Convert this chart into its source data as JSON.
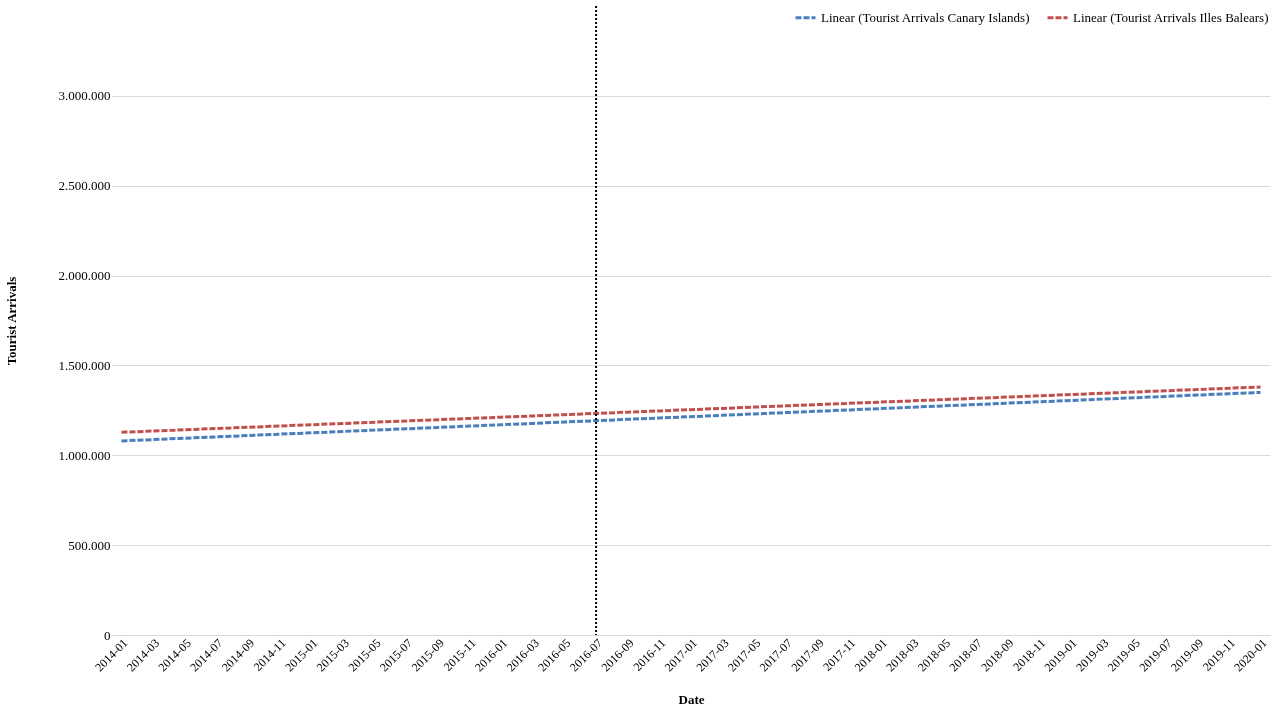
{
  "chart_data": {
    "type": "line",
    "xlabel": "Date",
    "ylabel": "Tourist Arrivals",
    "categories": [
      "2014-01",
      "2014-03",
      "2014-05",
      "2014-07",
      "2014-09",
      "2014-11",
      "2015-01",
      "2015-03",
      "2015-05",
      "2015-07",
      "2015-09",
      "2015-11",
      "2016-01",
      "2016-03",
      "2016-05",
      "2016-07",
      "2016-09",
      "2016-11",
      "2017-01",
      "2017-03",
      "2017-05",
      "2017-07",
      "2017-09",
      "2017-11",
      "2018-01",
      "2018-03",
      "2018-05",
      "2018-07",
      "2018-09",
      "2018-11",
      "2019-01",
      "2019-03",
      "2019-05",
      "2019-07",
      "2019-09",
      "2019-11",
      "2020-01"
    ],
    "series": [
      {
        "name": "Linear (Tourist Arrivals Canary Islands)",
        "color": "#4a7ebb",
        "values": [
          1080000,
          1087500,
          1095000,
          1102500,
          1110000,
          1117500,
          1125000,
          1132500,
          1140000,
          1147500,
          1155000,
          1162500,
          1170000,
          1177500,
          1185000,
          1192500,
          1200000,
          1207500,
          1215000,
          1222500,
          1230000,
          1237500,
          1245000,
          1252500,
          1260000,
          1267500,
          1275000,
          1282500,
          1290000,
          1297500,
          1305000,
          1312500,
          1320000,
          1327500,
          1335000,
          1342500,
          1350000
        ]
      },
      {
        "name": "Linear (Tourist Arrivals Illes Balears)",
        "color": "#c0504d",
        "values": [
          1128000,
          1135000,
          1142000,
          1149000,
          1156000,
          1163000,
          1170000,
          1177000,
          1184000,
          1191000,
          1198000,
          1205000,
          1212000,
          1219000,
          1226000,
          1233000,
          1240000,
          1247000,
          1254000,
          1261000,
          1268000,
          1275000,
          1282000,
          1289000,
          1296000,
          1303000,
          1310000,
          1317000,
          1324000,
          1331000,
          1338000,
          1345000,
          1352000,
          1359000,
          1366000,
          1373000,
          1380000
        ]
      }
    ],
    "ylim": [
      0,
      3500000
    ],
    "yticks": [
      0,
      {
        "value": 500000,
        "label": "500.000"
      },
      {
        "value": 1000000,
        "label": "1.000.000"
      },
      {
        "value": 1500000,
        "label": "1.500.000"
      },
      {
        "value": 2000000,
        "label": "2.000.000"
      },
      {
        "value": 2500000,
        "label": "2.500.000"
      },
      {
        "value": 3000000,
        "label": "3.000.000"
      }
    ],
    "ref_lines": [
      {
        "axis": "x",
        "value": "2016-07",
        "color": "#000000",
        "line_style": "dotted"
      }
    ],
    "grid": "y",
    "legend": "top right",
    "marker": "none",
    "line_style": "dashed"
  }
}
